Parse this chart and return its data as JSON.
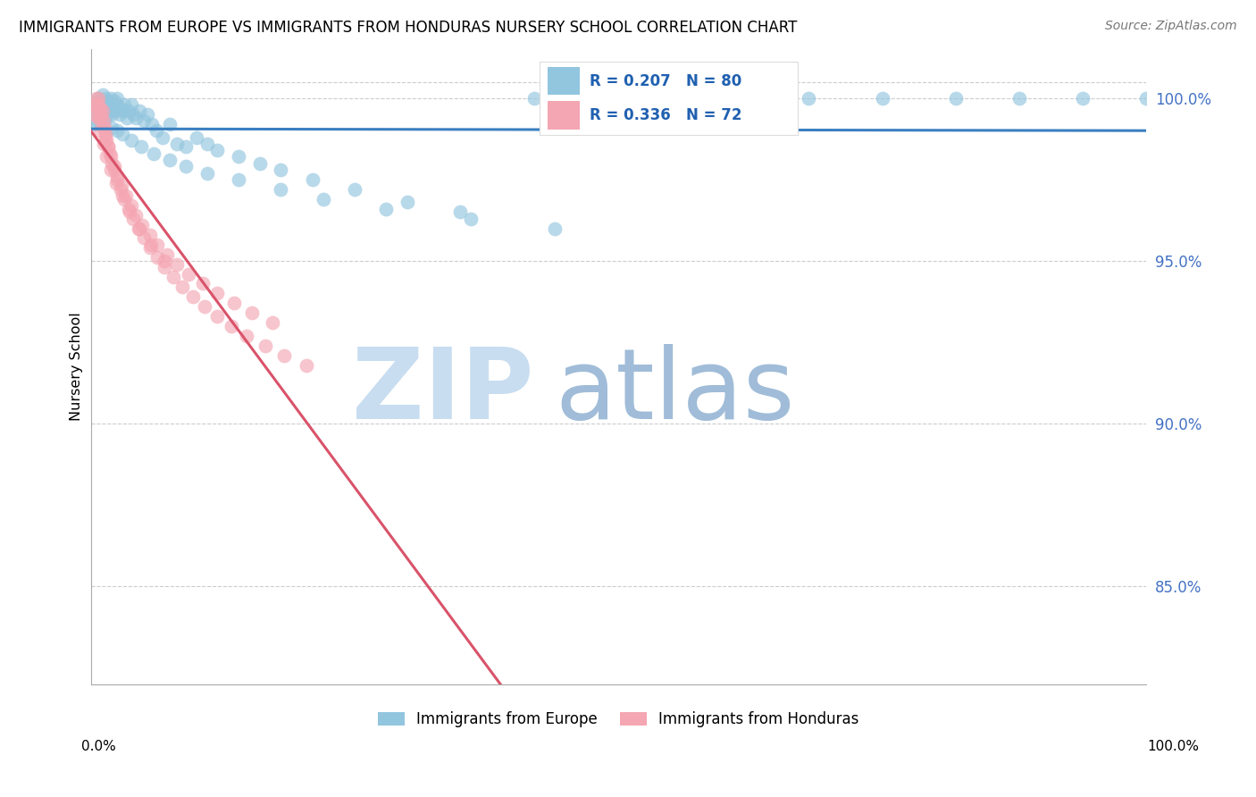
{
  "title": "IMMIGRANTS FROM EUROPE VS IMMIGRANTS FROM HONDURAS NURSERY SCHOOL CORRELATION CHART",
  "source": "Source: ZipAtlas.com",
  "ylabel": "Nursery School",
  "legend_europe": "Immigrants from Europe",
  "legend_honduras": "Immigrants from Honduras",
  "R_europe": 0.207,
  "N_europe": 80,
  "R_honduras": 0.336,
  "N_honduras": 72,
  "europe_color": "#92c5de",
  "honduras_color": "#f4a6b2",
  "europe_line_color": "#3a7fc1",
  "honduras_line_color": "#d9536a",
  "xlim": [
    0.0,
    1.0
  ],
  "ylim": [
    82.0,
    101.5
  ],
  "yticks": [
    85.0,
    90.0,
    95.0,
    100.0
  ],
  "europe_x": [
    0.004,
    0.005,
    0.006,
    0.007,
    0.008,
    0.009,
    0.01,
    0.011,
    0.012,
    0.013,
    0.014,
    0.015,
    0.016,
    0.017,
    0.018,
    0.019,
    0.02,
    0.021,
    0.022,
    0.023,
    0.024,
    0.025,
    0.027,
    0.028,
    0.03,
    0.032,
    0.034,
    0.036,
    0.038,
    0.04,
    0.043,
    0.046,
    0.05,
    0.054,
    0.058,
    0.062,
    0.068,
    0.075,
    0.082,
    0.09,
    0.1,
    0.11,
    0.12,
    0.14,
    0.16,
    0.18,
    0.21,
    0.25,
    0.3,
    0.35,
    0.42,
    0.5,
    0.55,
    0.62,
    0.68,
    0.75,
    0.82,
    0.88,
    0.94,
    1.0,
    0.006,
    0.008,
    0.01,
    0.013,
    0.016,
    0.02,
    0.025,
    0.03,
    0.038,
    0.048,
    0.06,
    0.075,
    0.09,
    0.11,
    0.14,
    0.18,
    0.22,
    0.28,
    0.36,
    0.44
  ],
  "europe_y": [
    99.2,
    99.5,
    99.8,
    100.0,
    99.6,
    99.9,
    99.7,
    100.1,
    99.8,
    99.5,
    100.0,
    99.7,
    99.9,
    99.6,
    99.8,
    100.0,
    99.5,
    99.7,
    99.9,
    99.6,
    99.8,
    100.0,
    99.5,
    99.7,
    99.6,
    99.8,
    99.4,
    99.6,
    99.8,
    99.5,
    99.4,
    99.6,
    99.3,
    99.5,
    99.2,
    99.0,
    98.8,
    99.2,
    98.6,
    98.5,
    98.8,
    98.6,
    98.4,
    98.2,
    98.0,
    97.8,
    97.5,
    97.2,
    96.8,
    96.5,
    100.0,
    100.0,
    100.0,
    100.0,
    100.0,
    100.0,
    100.0,
    100.0,
    100.0,
    100.0,
    99.3,
    99.4,
    99.2,
    99.3,
    99.5,
    99.1,
    99.0,
    98.9,
    98.7,
    98.5,
    98.3,
    98.1,
    97.9,
    97.7,
    97.5,
    97.2,
    96.9,
    96.6,
    96.3,
    96.0
  ],
  "honduras_x": [
    0.003,
    0.004,
    0.005,
    0.006,
    0.007,
    0.008,
    0.009,
    0.01,
    0.011,
    0.012,
    0.013,
    0.014,
    0.015,
    0.016,
    0.018,
    0.02,
    0.022,
    0.025,
    0.028,
    0.032,
    0.036,
    0.04,
    0.045,
    0.05,
    0.056,
    0.063,
    0.07,
    0.078,
    0.087,
    0.097,
    0.108,
    0.12,
    0.133,
    0.148,
    0.165,
    0.183,
    0.204,
    0.007,
    0.008,
    0.01,
    0.012,
    0.014,
    0.016,
    0.019,
    0.022,
    0.025,
    0.029,
    0.033,
    0.038,
    0.043,
    0.049,
    0.056,
    0.063,
    0.072,
    0.082,
    0.093,
    0.106,
    0.12,
    0.136,
    0.153,
    0.172,
    0.005,
    0.007,
    0.009,
    0.012,
    0.015,
    0.019,
    0.024,
    0.03,
    0.037,
    0.046,
    0.057,
    0.07
  ],
  "honduras_y": [
    99.5,
    99.8,
    100.0,
    99.6,
    99.8,
    99.4,
    99.7,
    99.5,
    99.6,
    99.3,
    99.1,
    98.9,
    98.7,
    98.5,
    98.3,
    98.0,
    97.8,
    97.5,
    97.2,
    96.9,
    96.6,
    96.3,
    96.0,
    95.7,
    95.4,
    95.1,
    94.8,
    94.5,
    94.2,
    93.9,
    93.6,
    93.3,
    93.0,
    92.7,
    92.4,
    92.1,
    91.8,
    100.0,
    99.7,
    99.4,
    99.1,
    98.8,
    98.5,
    98.2,
    97.9,
    97.6,
    97.3,
    97.0,
    96.7,
    96.4,
    96.1,
    95.8,
    95.5,
    95.2,
    94.9,
    94.6,
    94.3,
    94.0,
    93.7,
    93.4,
    93.1,
    99.8,
    99.4,
    99.0,
    98.6,
    98.2,
    97.8,
    97.4,
    97.0,
    96.5,
    96.0,
    95.5,
    95.0
  ],
  "watermark_zip_color": "#c8ddf0",
  "watermark_atlas_color": "#a0bcd8"
}
